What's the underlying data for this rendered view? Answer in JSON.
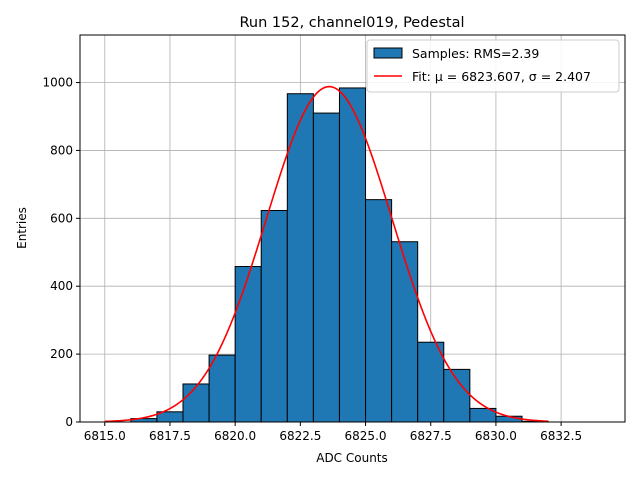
{
  "chart_data": {
    "type": "bar",
    "title": "Run 152, channel019, Pedestal",
    "xlabel": "ADC Counts",
    "ylabel": "Entries",
    "xlim": [
      6814.05,
      6834.95
    ],
    "ylim": [
      0,
      1140
    ],
    "x_ticks": [
      6815.0,
      6817.5,
      6820.0,
      6822.5,
      6825.0,
      6827.5,
      6830.0,
      6832.5
    ],
    "x_tick_labels": [
      "6815.0",
      "6817.5",
      "6820.0",
      "6822.5",
      "6825.0",
      "6827.5",
      "6830.0",
      "6832.5"
    ],
    "y_ticks": [
      0,
      200,
      400,
      600,
      800,
      1000
    ],
    "y_tick_labels": [
      "0",
      "200",
      "400",
      "600",
      "800",
      "1000"
    ],
    "grid": true,
    "legend_position": "top-right",
    "histogram": {
      "name": "Samples: RMS=2.39",
      "color": "#1f77b4",
      "edge_color": "#000000",
      "bin_width": 1,
      "bin_edges_start": [
        6816,
        6817,
        6818,
        6819,
        6820,
        6821,
        6822,
        6823,
        6824,
        6825,
        6826,
        6827,
        6828,
        6829,
        6830,
        6831
      ],
      "values": [
        10,
        30,
        112,
        197,
        458,
        623,
        967,
        910,
        984,
        655,
        531,
        235,
        155,
        40,
        17,
        2
      ]
    },
    "fit": {
      "name": "Fit: μ = 6823.607, σ = 2.407",
      "color": "#ff0000",
      "mu": 6823.607,
      "sigma": 2.407,
      "amplitude": 988,
      "x_range": [
        6815,
        6832
      ]
    }
  }
}
